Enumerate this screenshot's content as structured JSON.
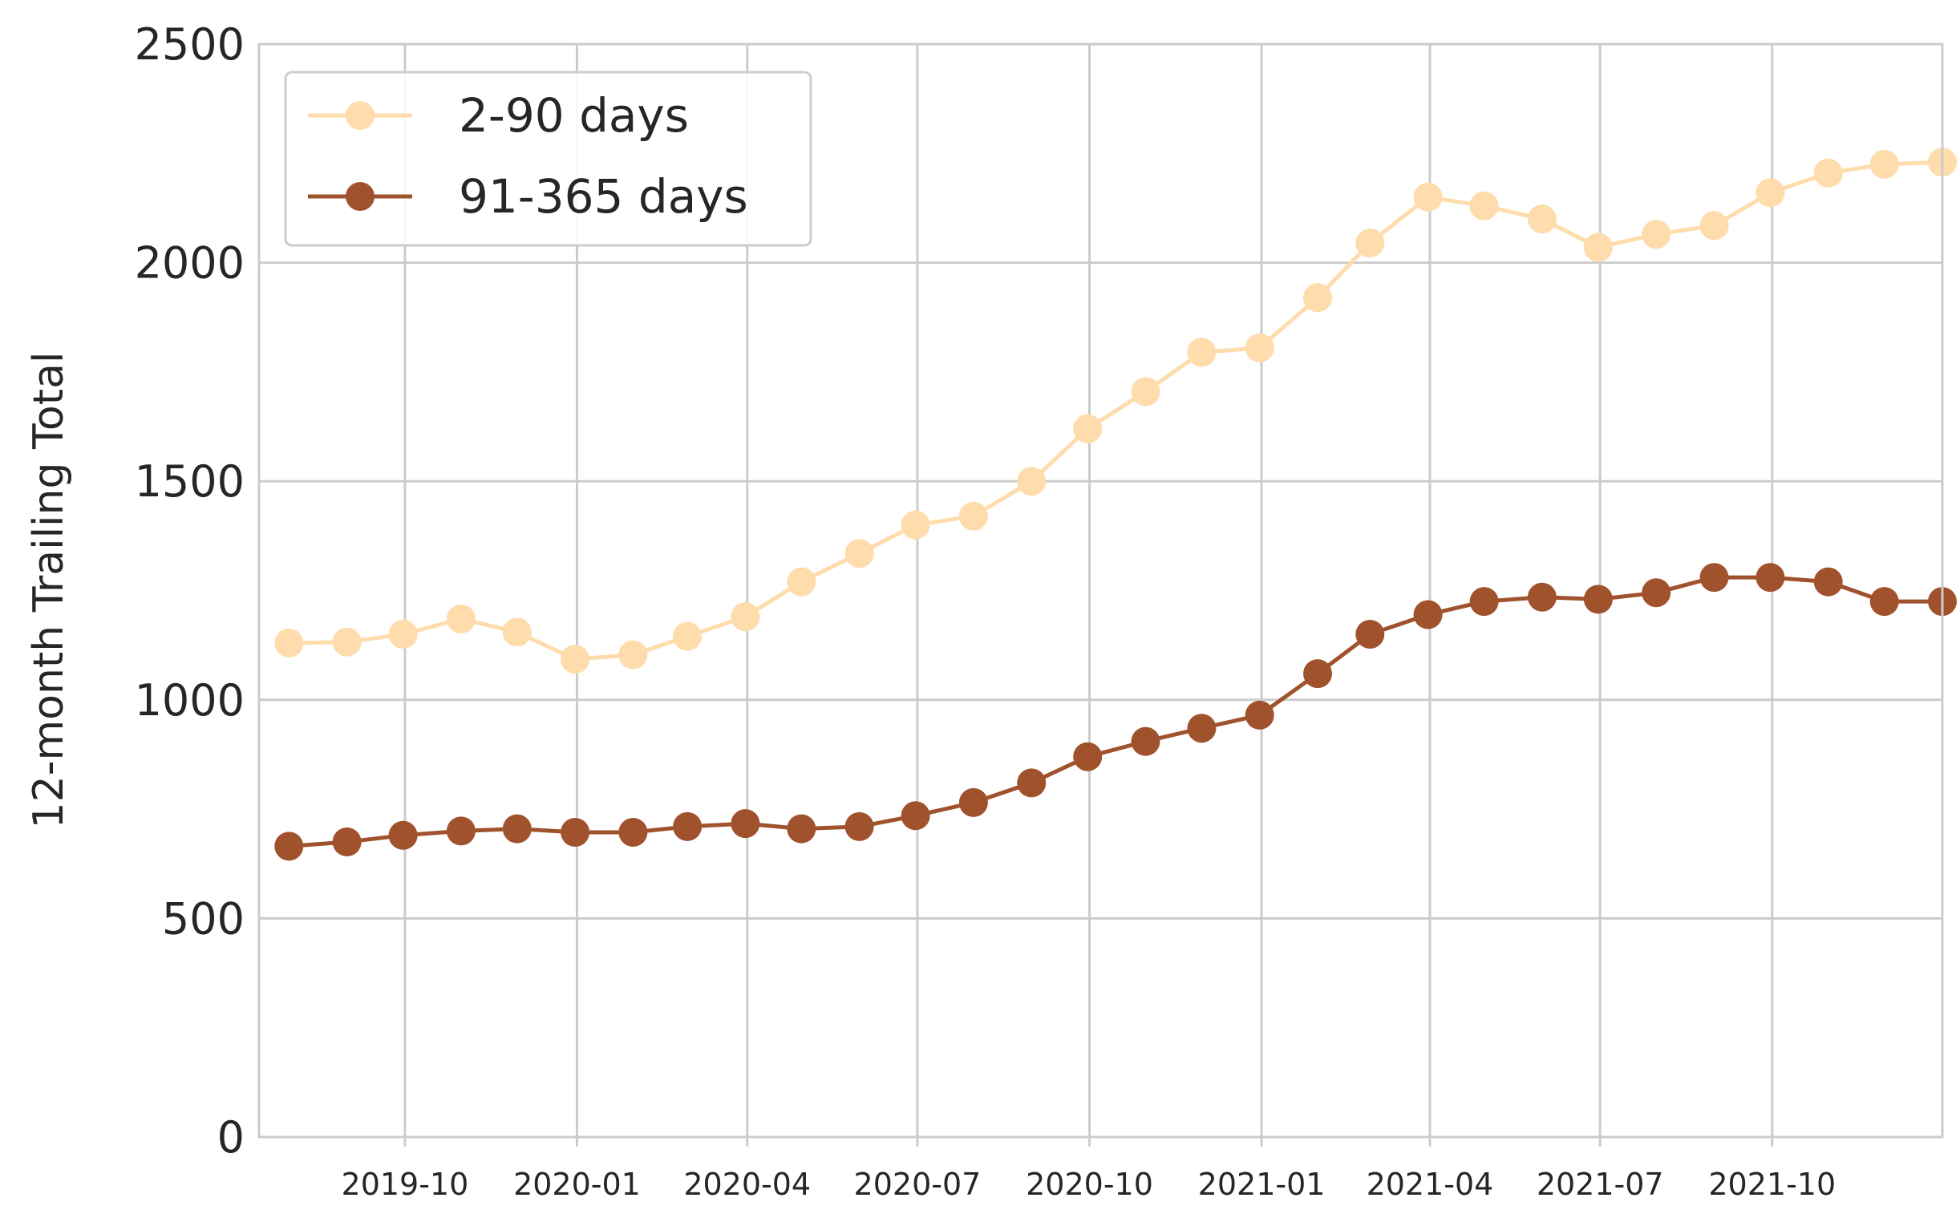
{
  "chart_data": {
    "type": "line",
    "title": "",
    "xlabel": "",
    "ylabel": "12-month Trailing Total",
    "ylim": [
      0,
      2500
    ],
    "xlim": [
      "2019-07-15",
      "2021-12-31"
    ],
    "yticks": [
      0,
      500,
      1000,
      1500,
      2000,
      2500
    ],
    "xticks": [
      "2019-10",
      "2020-01",
      "2020-04",
      "2020-07",
      "2020-10",
      "2021-01",
      "2021-04",
      "2021-07",
      "2021-10"
    ],
    "grid": true,
    "legend_position": "upper-left",
    "x": [
      "2019-07-31",
      "2019-08-31",
      "2019-09-30",
      "2019-10-31",
      "2019-11-30",
      "2019-12-31",
      "2020-01-31",
      "2020-02-29",
      "2020-03-31",
      "2020-04-30",
      "2020-05-31",
      "2020-06-30",
      "2020-07-31",
      "2020-08-31",
      "2020-09-30",
      "2020-10-31",
      "2020-11-30",
      "2020-12-31",
      "2021-01-31",
      "2021-02-28",
      "2021-03-31",
      "2021-04-30",
      "2021-05-31",
      "2021-06-30",
      "2021-07-31",
      "2021-08-31",
      "2021-09-30",
      "2021-10-31",
      "2021-11-30",
      "2021-12-31"
    ],
    "series": [
      {
        "name": "2-90 days",
        "color": "#fedcab",
        "values": [
          1130,
          1132,
          1150,
          1185,
          1155,
          1093,
          1103,
          1145,
          1190,
          1270,
          1335,
          1400,
          1420,
          1500,
          1620,
          1705,
          1795,
          1805,
          1920,
          2045,
          2150,
          2130,
          2100,
          2035,
          2065,
          2085,
          2160,
          2205,
          2225,
          2230
        ]
      },
      {
        "name": "91-365 days",
        "color": "#a0522d",
        "values": [
          665,
          675,
          690,
          700,
          705,
          697,
          697,
          710,
          717,
          705,
          710,
          735,
          765,
          810,
          870,
          905,
          935,
          965,
          1060,
          1150,
          1195,
          1225,
          1235,
          1230,
          1245,
          1280,
          1280,
          1270,
          1225,
          1225
        ]
      }
    ]
  }
}
